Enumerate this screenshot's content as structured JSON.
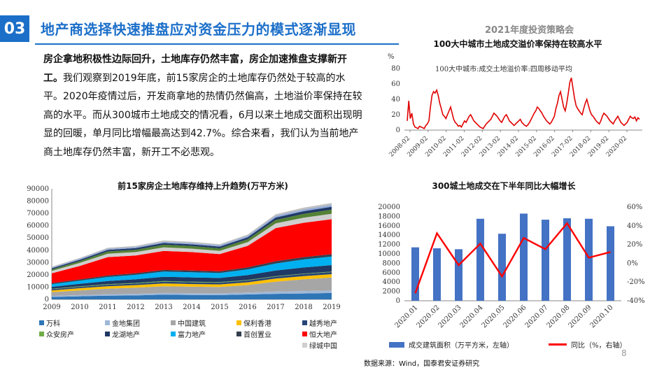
{
  "header": {
    "section_number": "03",
    "title": "地产商选择快速推盘应对资金压力的模式逐渐显现",
    "report_tag": "2021年度投资策略会"
  },
  "paragraph": {
    "bold_text": "房企拿地积极性边际回升，土地库存仍然丰富，房企加速推盘支撑新开工。",
    "body_text": "我们观察到2019年底，前15家房企的土地库存仍然处于较高的水平。2020年疫情过后，开发商拿地的热情仍然偏高，土地溢价率保持在较高的水平。而从300城市土地成交的情况看，6月以来土地成交面积出现明显的回暖，单月同比增幅最高达到42.7%。综合来看，我们认为当前地产商土地库存仍然丰富，新开工不必悲观。"
  },
  "footer": {
    "source": "数据来源：Wind，国泰君安证券研究",
    "page_number": "8"
  },
  "chart_data": [
    {
      "id": "land-premium",
      "type": "line",
      "title": "100大中城市土地成交溢价率保持在较高水平",
      "ylabel": "%",
      "ylim": [
        0,
        80
      ],
      "yticks": [
        0,
        20,
        40,
        60,
        80
      ],
      "x_tick_labels": [
        "2008-02",
        "2009-02",
        "2010-02",
        "2011-02",
        "2012-02",
        "2013-02",
        "2014-02",
        "2015-02",
        "2016-02",
        "2017-02",
        "2018-02",
        "2019-02",
        "2020-02"
      ],
      "x_start": "2008-02",
      "x_end": "2020-10",
      "grid": false,
      "legend_position": "top-left",
      "series": [
        {
          "name": "100大中城市:成交土地溢价率:四周移动平均",
          "color": "#e00000",
          "values": [
            12,
            38,
            15,
            22,
            8,
            4,
            3,
            2,
            5,
            4,
            3,
            2,
            6,
            8,
            12,
            30,
            45,
            50,
            48,
            52,
            45,
            35,
            28,
            20,
            18,
            15,
            20,
            25,
            30,
            22,
            14,
            10,
            8,
            5,
            6,
            4,
            8,
            12,
            10,
            14,
            18,
            20,
            16,
            12,
            10,
            8,
            6,
            4,
            3,
            2,
            5,
            8,
            10,
            12,
            14,
            18,
            22,
            20,
            18,
            15,
            12,
            10,
            14,
            18,
            20,
            16,
            12,
            10,
            8,
            6,
            8,
            10,
            12,
            14,
            10,
            8,
            6,
            5,
            7,
            10,
            14,
            18,
            22,
            25,
            30,
            28,
            25,
            22,
            18,
            15,
            12,
            10,
            8,
            10,
            14,
            18,
            28,
            35,
            45,
            50,
            40,
            30,
            25,
            35,
            48,
            62,
            68,
            55,
            42,
            32,
            28,
            25,
            22,
            20,
            28,
            35,
            40,
            32,
            25,
            20,
            18,
            15,
            12,
            10,
            8,
            12,
            18,
            22,
            20,
            18,
            15,
            12,
            10,
            8,
            12,
            15,
            18,
            14,
            10,
            8,
            6,
            8,
            10,
            14,
            18,
            16,
            15,
            17,
            12,
            16,
            14
          ]
        }
      ]
    },
    {
      "id": "land-inventory",
      "type": "area",
      "stacked": true,
      "title": "前15家房企土地库存维持上升趋势(万平方米)",
      "ylim": [
        0,
        90000
      ],
      "yticks": [
        0,
        10000,
        20000,
        30000,
        40000,
        50000,
        60000,
        70000,
        80000,
        90000
      ],
      "categories": [
        "2009",
        "2010",
        "2011",
        "2012",
        "2013",
        "2014",
        "2015",
        "2016",
        "2017",
        "2018",
        "2019"
      ],
      "grid": false,
      "legend_position": "bottom",
      "series": [
        {
          "name": "万科",
          "color": "#2e75b6",
          "values": [
            2000,
            2500,
            3000,
            3200,
            3800,
            3600,
            3500,
            4000,
            4500,
            4800,
            5200
          ]
        },
        {
          "name": "金地集团",
          "color": "#9fb8d8",
          "values": [
            800,
            1000,
            1200,
            1300,
            1400,
            1400,
            1400,
            1600,
            1900,
            2000,
            2100
          ]
        },
        {
          "name": "中国建筑",
          "color": "#a6a6a6",
          "values": [
            3000,
            3800,
            4500,
            5000,
            5500,
            5300,
            5200,
            6000,
            8000,
            9500,
            10500
          ]
        },
        {
          "name": "保利香港",
          "color": "#ffc000",
          "values": [
            1500,
            1800,
            2000,
            2100,
            2300,
            2200,
            2100,
            2300,
            2500,
            2600,
            2700
          ]
        },
        {
          "name": "越秀地产",
          "color": "#264478",
          "values": [
            1000,
            1100,
            1200,
            1300,
            1400,
            1400,
            1400,
            1500,
            1600,
            1700,
            1700
          ]
        },
        {
          "name": "众安房产",
          "color": "#70ad47",
          "values": [
            400,
            450,
            500,
            500,
            500,
            500,
            450,
            450,
            450,
            400,
            400
          ]
        },
        {
          "name": "龙湖地产",
          "color": "#1f3864",
          "values": [
            1500,
            2000,
            2600,
            3000,
            3500,
            3500,
            3400,
            4000,
            4500,
            5000,
            5300
          ]
        },
        {
          "name": "富力地产",
          "color": "#00b0f0",
          "values": [
            2200,
            2600,
            3200,
            3600,
            4200,
            4200,
            4000,
            4600,
            5800,
            6500,
            7000
          ]
        },
        {
          "name": "首创置业",
          "color": "#333f50",
          "values": [
            800,
            1000,
            1200,
            1300,
            1400,
            1400,
            1400,
            1600,
            1800,
            1900,
            1900
          ]
        },
        {
          "name": "恒大地产",
          "color": "#ff0000",
          "values": [
            8000,
            11000,
            15000,
            14500,
            15500,
            15000,
            14000,
            17500,
            27000,
            28000,
            28500
          ]
        },
        {
          "name": "绿城中国",
          "color": "#d0cece",
          "values": [
            2000,
            2400,
            2800,
            2700,
            2900,
            2800,
            2700,
            3100,
            3800,
            4100,
            4400
          ]
        },
        {
          "name": "",
          "color": "#548235",
          "values": [
            1200,
            1500,
            1800,
            1900,
            2100,
            2100,
            2000,
            2300,
            2800,
            3100,
            3300
          ]
        },
        {
          "name": "",
          "color": "#203864",
          "values": [
            900,
            1100,
            1300,
            1300,
            1400,
            1400,
            1400,
            1600,
            2000,
            2200,
            2400
          ]
        },
        {
          "name": "",
          "color": "#8faadc",
          "values": [
            700,
            800,
            900,
            900,
            1000,
            1000,
            1000,
            1100,
            1300,
            1400,
            1500
          ]
        },
        {
          "name": "",
          "color": "#bfbfbf",
          "values": [
            600,
            700,
            800,
            900,
            1000,
            1000,
            1000,
            1100,
            1300,
            1500,
            1600
          ]
        }
      ]
    },
    {
      "id": "land-300-cities",
      "type": "bar",
      "title": "300城土地成交在下半年同比大幅增长",
      "categories": [
        "2020.01",
        "2020.02",
        "2020.03",
        "2020.04",
        "2020.05",
        "2020.06",
        "2020.07",
        "2020.08",
        "2020.09",
        "2020.10"
      ],
      "ylim": [
        0,
        20000
      ],
      "yticks": [
        0,
        2000,
        4000,
        6000,
        8000,
        10000,
        12000,
        14000,
        16000,
        18000,
        20000
      ],
      "y2lim": [
        -40,
        60
      ],
      "y2ticks": [
        -40,
        -20,
        0,
        20,
        40,
        60
      ],
      "grid": false,
      "legend_position": "bottom",
      "series": [
        {
          "name": "成交建筑面积（万平方米，左轴）",
          "type": "bar",
          "axis": "left",
          "color": "#4472c4",
          "values": [
            11400,
            11200,
            11000,
            17500,
            14300,
            18600,
            17300,
            17600,
            17500,
            15900
          ]
        },
        {
          "name": "同比（%，右轴）",
          "type": "line",
          "axis": "right",
          "color": "#ff0000",
          "values": [
            -32,
            32,
            -2,
            21,
            -14,
            27,
            15,
            42.7,
            6,
            12
          ]
        }
      ]
    }
  ]
}
